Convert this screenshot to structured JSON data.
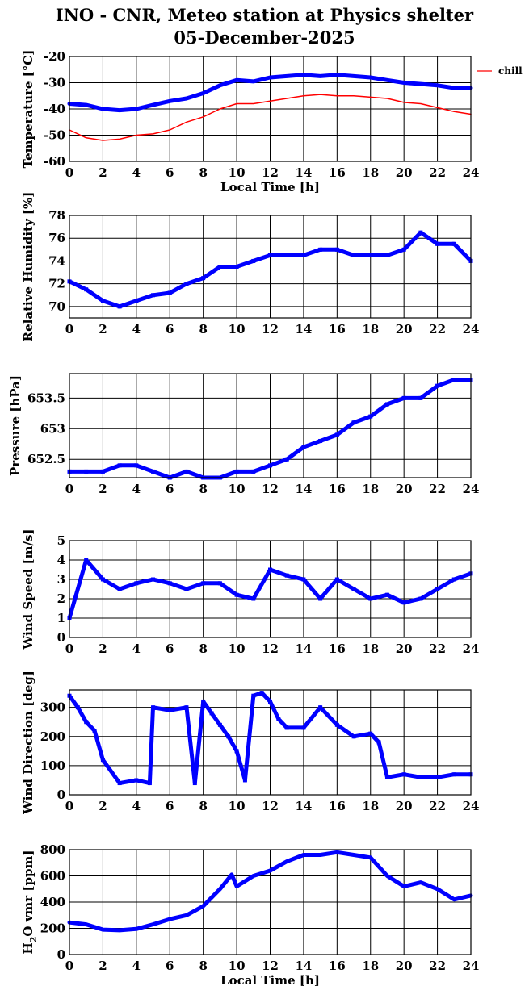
{
  "header": {
    "title_line1": "INO - CNR, Meteo station at Physics shelter",
    "title_line2": "05-December-2025"
  },
  "colors": {
    "series_main": "#0000ff",
    "series_chill": "#ff0000",
    "grid": "#000000"
  },
  "chart_data": [
    {
      "id": "temperature",
      "type": "line",
      "ylabel": "Temperature [°C]",
      "xlabel": "Local Time [h]",
      "xlim": [
        0,
        24
      ],
      "ylim": [
        -60,
        -20
      ],
      "xticks": [
        "0",
        "2",
        "4",
        "6",
        "8",
        "10",
        "12",
        "14",
        "16",
        "18",
        "20",
        "22",
        "24"
      ],
      "yticks": [
        "-60",
        "-50",
        "-40",
        "-30",
        "-20"
      ],
      "legend": [
        {
          "name": "chill",
          "color": "#ff0000"
        }
      ],
      "series": [
        {
          "name": "",
          "color": "#0000ff",
          "x": [
            0,
            1,
            2,
            3,
            4,
            5,
            6,
            7,
            8,
            9,
            10,
            11,
            12,
            13,
            14,
            15,
            16,
            17,
            18,
            19,
            20,
            21,
            22,
            23,
            24
          ],
          "y": [
            -38,
            -38.5,
            -40,
            -40.5,
            -40,
            -38.5,
            -37,
            -36,
            -34,
            -31,
            -29,
            -29.5,
            -28,
            -27.5,
            -27,
            -27.5,
            -27,
            -27.5,
            -28,
            -29,
            -30,
            -30.5,
            -31,
            -32,
            -32
          ]
        },
        {
          "name": "chill",
          "color": "#ff0000",
          "x": [
            0,
            1,
            2,
            3,
            4,
            5,
            6,
            7,
            8,
            9,
            10,
            11,
            12,
            13,
            14,
            15,
            16,
            17,
            18,
            19,
            20,
            21,
            22,
            23,
            24
          ],
          "y": [
            -48,
            -51,
            -52,
            -51.5,
            -50,
            -49.5,
            -48,
            -45,
            -43,
            -40,
            -38,
            -38,
            -37,
            -36,
            -35,
            -34.5,
            -35,
            -35,
            -35.5,
            -36,
            -37.5,
            -38,
            -39.5,
            -41,
            -42
          ]
        }
      ]
    },
    {
      "id": "humidity",
      "type": "scatter",
      "ylabel": "Relative Humidity [%]",
      "xlabel": "",
      "xlim": [
        0,
        24
      ],
      "ylim": [
        69,
        78
      ],
      "xticks": [
        "0",
        "2",
        "4",
        "6",
        "8",
        "10",
        "12",
        "14",
        "16",
        "18",
        "20",
        "22",
        "24"
      ],
      "yticks": [
        "70",
        "72",
        "74",
        "76",
        "78"
      ],
      "series": [
        {
          "name": "",
          "color": "#0000ff",
          "x": [
            0,
            1,
            2,
            3,
            4,
            5,
            6,
            7,
            8,
            9,
            10,
            11,
            12,
            13,
            14,
            15,
            16,
            17,
            18,
            19,
            20,
            21,
            22,
            23,
            24
          ],
          "y": [
            72.2,
            71.5,
            70.5,
            70,
            70.5,
            71,
            71.2,
            72,
            72.5,
            73.5,
            73.5,
            74,
            74.5,
            74.5,
            74.5,
            75,
            75,
            74.5,
            74.5,
            74.5,
            75,
            76.5,
            75.5,
            75.5,
            74
          ]
        }
      ]
    },
    {
      "id": "pressure",
      "type": "scatter",
      "ylabel": "Pressure [hPa]",
      "xlabel": "",
      "xlim": [
        0,
        24
      ],
      "ylim": [
        652.2,
        653.9
      ],
      "xticks": [
        "0",
        "2",
        "4",
        "6",
        "8",
        "10",
        "12",
        "14",
        "16",
        "18",
        "20",
        "22",
        "24"
      ],
      "yticks": [
        "652.5",
        "653",
        "653.5"
      ],
      "series": [
        {
          "name": "",
          "color": "#0000ff",
          "x": [
            0,
            1,
            2,
            3,
            4,
            5,
            6,
            7,
            8,
            9,
            10,
            11,
            12,
            13,
            14,
            15,
            16,
            17,
            18,
            19,
            20,
            21,
            22,
            23,
            24
          ],
          "y": [
            652.3,
            652.3,
            652.3,
            652.4,
            652.4,
            652.3,
            652.2,
            652.3,
            652.2,
            652.2,
            652.3,
            652.3,
            652.4,
            652.5,
            652.7,
            652.8,
            652.9,
            653.1,
            653.2,
            653.4,
            653.5,
            653.5,
            653.7,
            653.8,
            653.8
          ]
        }
      ]
    },
    {
      "id": "wind_speed",
      "type": "scatter",
      "ylabel": "Wind Speed [m/s]",
      "xlabel": "",
      "xlim": [
        0,
        24
      ],
      "ylim": [
        0,
        5
      ],
      "xticks": [
        "0",
        "2",
        "4",
        "6",
        "8",
        "10",
        "12",
        "14",
        "16",
        "18",
        "20",
        "22",
        "24"
      ],
      "yticks": [
        "0",
        "1",
        "2",
        "3",
        "4",
        "5"
      ],
      "series": [
        {
          "name": "",
          "color": "#0000ff",
          "x": [
            0,
            1,
            2,
            3,
            4,
            5,
            6,
            7,
            8,
            9,
            10,
            11,
            12,
            13,
            14,
            15,
            16,
            17,
            18,
            19,
            20,
            21,
            22,
            23,
            24
          ],
          "y": [
            1,
            4,
            3,
            2.5,
            2.8,
            3,
            2.8,
            2.5,
            2.8,
            2.8,
            2.2,
            2,
            3.5,
            3.2,
            3,
            2,
            3,
            2.5,
            2,
            2.2,
            1.8,
            2,
            2.5,
            3,
            3.3
          ]
        }
      ]
    },
    {
      "id": "wind_direction",
      "type": "scatter",
      "ylabel": "Wind Direction [deg]",
      "xlabel": "",
      "xlim": [
        0,
        24
      ],
      "ylim": [
        0,
        360
      ],
      "xticks": [
        "0",
        "2",
        "4",
        "6",
        "8",
        "10",
        "12",
        "14",
        "16",
        "18",
        "20",
        "22",
        "24"
      ],
      "yticks": [
        "0",
        "100",
        "200",
        "300"
      ],
      "series": [
        {
          "name": "",
          "color": "#0000ff",
          "x": [
            0,
            0.5,
            1,
            1.5,
            2,
            3,
            4,
            4.8,
            5,
            6,
            7,
            7.5,
            8,
            8.5,
            9,
            9.5,
            10,
            10.5,
            11,
            11.5,
            12,
            12.5,
            13,
            14,
            15,
            16,
            17,
            18,
            18.5,
            19,
            20,
            21,
            22,
            23,
            24
          ],
          "y": [
            340,
            300,
            250,
            220,
            120,
            40,
            50,
            40,
            300,
            290,
            300,
            40,
            320,
            280,
            240,
            200,
            150,
            50,
            340,
            350,
            320,
            260,
            230,
            230,
            300,
            240,
            200,
            210,
            180,
            60,
            70,
            60,
            60,
            70,
            70
          ]
        }
      ]
    },
    {
      "id": "h2o_vmr",
      "type": "line",
      "ylabel": "H2O vmr [ppm]",
      "xlabel": "Local Time [h]",
      "xlim": [
        0,
        24
      ],
      "ylim": [
        0,
        800
      ],
      "xticks": [
        "0",
        "2",
        "4",
        "6",
        "8",
        "10",
        "12",
        "14",
        "16",
        "18",
        "20",
        "22",
        "24"
      ],
      "yticks": [
        "0",
        "200",
        "400",
        "600",
        "800"
      ],
      "series": [
        {
          "name": "",
          "color": "#0000ff",
          "x": [
            0,
            1,
            2,
            3,
            4,
            5,
            6,
            7,
            8,
            9,
            9.7,
            10,
            11,
            12,
            13,
            14,
            15,
            16,
            17,
            18,
            19,
            20,
            21,
            22,
            23,
            24
          ],
          "y": [
            245,
            230,
            190,
            185,
            195,
            230,
            270,
            300,
            370,
            500,
            610,
            520,
            600,
            640,
            710,
            760,
            760,
            780,
            760,
            740,
            600,
            520,
            550,
            500,
            420,
            450
          ]
        }
      ]
    }
  ]
}
